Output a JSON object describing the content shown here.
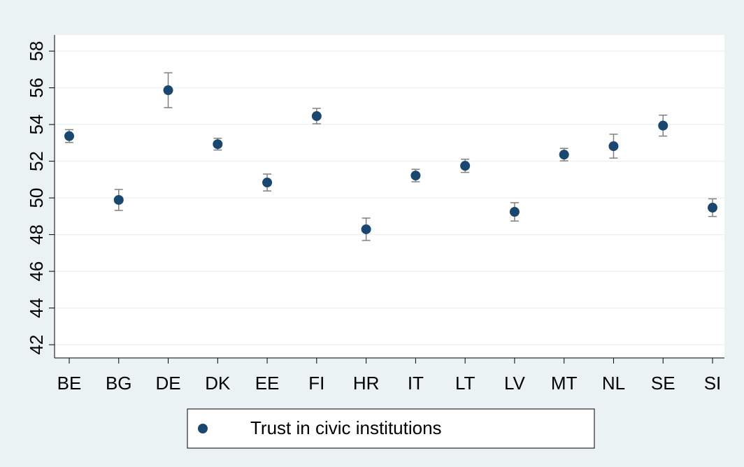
{
  "chart_data": {
    "type": "scatter",
    "categories": [
      "BE",
      "BG",
      "DE",
      "DK",
      "EE",
      "FI",
      "HR",
      "IT",
      "LT",
      "LV",
      "MT",
      "NL",
      "SE",
      "SI"
    ],
    "series": [
      {
        "name": "Trust in civic institutions",
        "color": "#1a476f",
        "error_color": "#808080",
        "values": [
          53.37,
          49.89,
          55.87,
          52.93,
          50.84,
          54.46,
          48.29,
          51.22,
          51.75,
          49.24,
          52.36,
          52.82,
          53.94,
          49.47
        ],
        "errors": [
          0.35,
          0.57,
          0.95,
          0.32,
          0.46,
          0.42,
          0.61,
          0.34,
          0.36,
          0.5,
          0.34,
          0.65,
          0.57,
          0.48
        ]
      }
    ],
    "ylim": [
      41.28,
      58.88
    ],
    "yticks": [
      42,
      44,
      46,
      48,
      50,
      52,
      54,
      56,
      58
    ],
    "grid": true
  }
}
